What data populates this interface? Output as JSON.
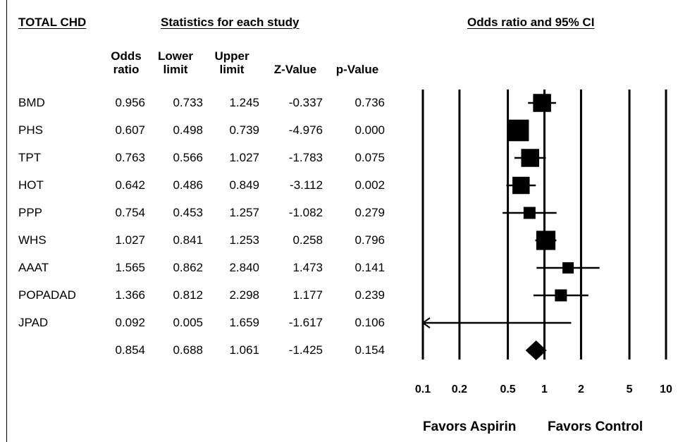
{
  "headers": {
    "group": "TOTAL CHD",
    "stats": "Statistics for each study",
    "plot": "Odds ratio and 95% CI"
  },
  "columns": {
    "or": [
      "Odds",
      "ratio"
    ],
    "lower": [
      "Lower",
      "limit"
    ],
    "upper": [
      "Upper",
      "limit"
    ],
    "z": "Z-Value",
    "p": "p-Value"
  },
  "rows": [
    {
      "study": "BMD",
      "or": "0.956",
      "lower": "0.733",
      "upper": "1.245",
      "z": "-0.337",
      "p": "0.736"
    },
    {
      "study": "PHS",
      "or": "0.607",
      "lower": "0.498",
      "upper": "0.739",
      "z": "-4.976",
      "p": "0.000"
    },
    {
      "study": "TPT",
      "or": "0.763",
      "lower": "0.566",
      "upper": "1.027",
      "z": "-1.783",
      "p": "0.075"
    },
    {
      "study": "HOT",
      "or": "0.642",
      "lower": "0.486",
      "upper": "0.849",
      "z": "-3.112",
      "p": "0.002"
    },
    {
      "study": "PPP",
      "or": "0.754",
      "lower": "0.453",
      "upper": "1.257",
      "z": "-1.082",
      "p": "0.279"
    },
    {
      "study": "WHS",
      "or": "1.027",
      "lower": "0.841",
      "upper": "1.253",
      "z": "0.258",
      "p": "0.796"
    },
    {
      "study": "AAAT",
      "or": "1.565",
      "lower": "0.862",
      "upper": "2.840",
      "z": "1.473",
      "p": "0.141"
    },
    {
      "study": "POPADAD",
      "or": "1.366",
      "lower": "0.812",
      "upper": "2.298",
      "z": "1.177",
      "p": "0.239"
    },
    {
      "study": "JPAD",
      "or": "0.092",
      "lower": "0.005",
      "upper": "1.659",
      "z": "-1.617",
      "p": "0.106"
    },
    {
      "study": "",
      "or": "0.854",
      "lower": "0.688",
      "upper": "1.061",
      "z": "-1.425",
      "p": "0.154"
    }
  ],
  "chart_data": {
    "type": "forest",
    "xscale": "log",
    "xlim": [
      0.1,
      10
    ],
    "ticks": [
      0.1,
      0.2,
      0.5,
      1,
      2,
      5,
      10
    ],
    "tick_labels": [
      "0.1",
      "0.2",
      "0.5",
      "1",
      "2",
      "5",
      "10"
    ],
    "reference": 1,
    "xlabel_left": "Favors Aspirin",
    "xlabel_right": "Favors Control",
    "studies": [
      {
        "name": "BMD",
        "or": 0.956,
        "lower": 0.733,
        "upper": 1.245,
        "weight": 0.75
      },
      {
        "name": "PHS",
        "or": 0.607,
        "lower": 0.498,
        "upper": 0.739,
        "weight": 0.9
      },
      {
        "name": "TPT",
        "or": 0.763,
        "lower": 0.566,
        "upper": 1.027,
        "weight": 0.75
      },
      {
        "name": "HOT",
        "or": 0.642,
        "lower": 0.486,
        "upper": 0.849,
        "weight": 0.72
      },
      {
        "name": "PPP",
        "or": 0.754,
        "lower": 0.453,
        "upper": 1.257,
        "weight": 0.5
      },
      {
        "name": "WHS",
        "or": 1.027,
        "lower": 0.841,
        "upper": 1.253,
        "weight": 0.8
      },
      {
        "name": "AAAT",
        "or": 1.565,
        "lower": 0.862,
        "upper": 2.84,
        "weight": 0.47
      },
      {
        "name": "POPADAD",
        "or": 1.366,
        "lower": 0.812,
        "upper": 2.298,
        "weight": 0.5
      },
      {
        "name": "JPAD",
        "or": 0.092,
        "lower": 0.005,
        "upper": 1.659,
        "weight": 0
      }
    ],
    "summary": {
      "or": 0.854,
      "lower": 0.688,
      "upper": 1.061
    }
  }
}
